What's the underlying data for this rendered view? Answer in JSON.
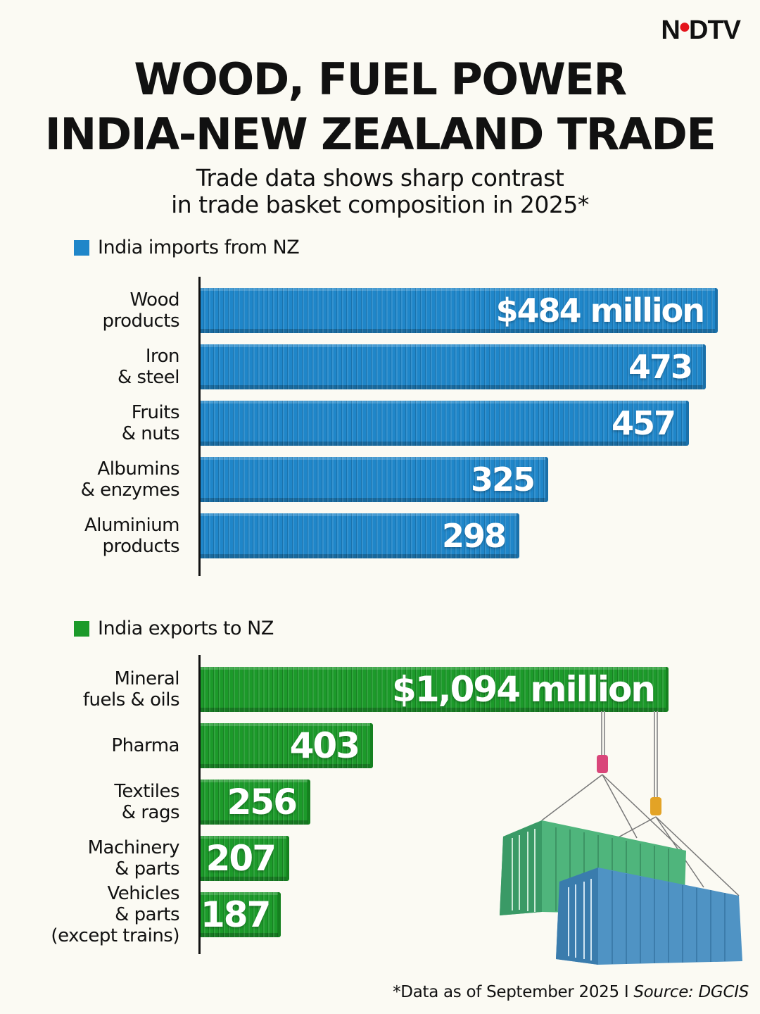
{
  "brand": {
    "logo_left": "N",
    "logo_right": "TV",
    "logo_dot": "●",
    "logo_mid": "D"
  },
  "title_line1": "WOOD, FUEL POWER",
  "title_line2": "INDIA-NEW ZEALAND TRADE",
  "subtitle_line1": "Trade data shows sharp contrast",
  "subtitle_line2": "in trade basket composition in 2025*",
  "colors": {
    "imports": "#1f86c9",
    "exports": "#1c9a2a",
    "background": "#fbfaf3"
  },
  "footer": {
    "note": "*Data as of September 2025  I  ",
    "source": "Source: DGCIS"
  },
  "chart_data": [
    {
      "type": "bar",
      "orientation": "horizontal",
      "legend": "India imports from NZ",
      "unit": "million",
      "categories": [
        [
          "Wood",
          "products"
        ],
        [
          "Iron",
          "& steel"
        ],
        [
          "Fruits",
          "& nuts"
        ],
        [
          "Albumins",
          "& enzymes"
        ],
        [
          "Aluminium",
          "products"
        ]
      ],
      "values": [
        484,
        473,
        457,
        325,
        298
      ],
      "labels": [
        "$484 million",
        "473",
        "457",
        "325",
        "298"
      ],
      "xlim": [
        0,
        484
      ]
    },
    {
      "type": "bar",
      "orientation": "horizontal",
      "legend": "India exports to NZ",
      "unit": "million",
      "categories": [
        [
          "Mineral",
          "fuels & oils"
        ],
        [
          "Pharma"
        ],
        [
          "Textiles",
          "& rags"
        ],
        [
          "Machinery",
          "& parts"
        ],
        [
          "Vehicles",
          "& parts",
          "(except trains)"
        ]
      ],
      "values": [
        1094,
        403,
        256,
        207,
        187
      ],
      "labels": [
        "$1,094 million",
        "403",
        "256",
        "207",
        "187"
      ],
      "xlim": [
        0,
        1094
      ]
    }
  ]
}
